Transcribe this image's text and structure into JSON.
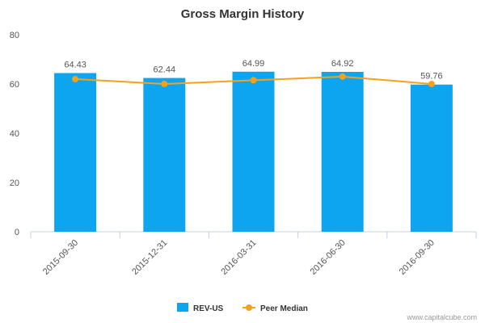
{
  "chart_data": {
    "type": "bar",
    "title": "Gross Margin History",
    "categories": [
      "2015-09-30",
      "2015-12-31",
      "2016-03-31",
      "2016-06-30",
      "2016-09-30"
    ],
    "series": [
      {
        "name": "REV-US",
        "kind": "bar",
        "color": "#0da5f0",
        "values": [
          64.43,
          62.44,
          64.99,
          64.92,
          59.76
        ],
        "labels": [
          "64.43",
          "62.44",
          "64.99",
          "64.92",
          "59.76"
        ]
      },
      {
        "name": "Peer Median",
        "kind": "line",
        "color": "#f5a21b",
        "values": [
          62.0,
          60.0,
          61.5,
          63.0,
          60.0
        ]
      }
    ],
    "ylim": [
      0,
      80
    ],
    "yticks": [
      "0",
      "20",
      "40",
      "60",
      "80"
    ],
    "grid": false,
    "legend": "bottom-center"
  },
  "credit": "www.capitalcube.com"
}
